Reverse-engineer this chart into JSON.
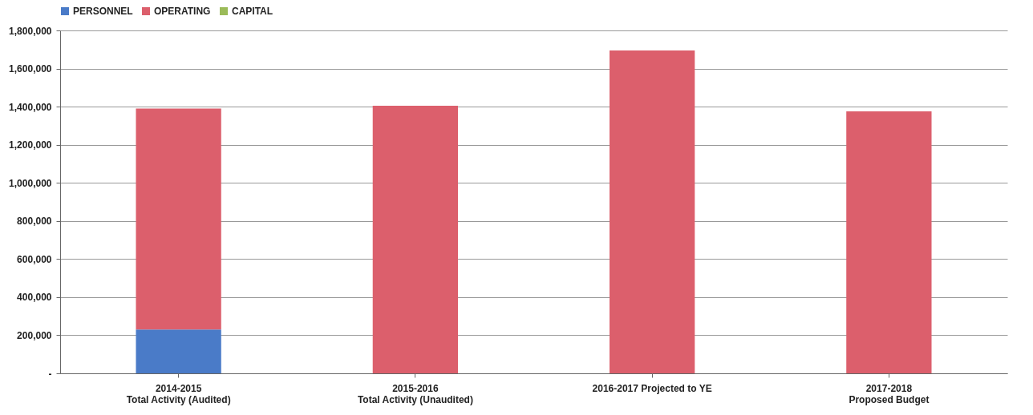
{
  "chart_data": {
    "type": "bar",
    "stacked": true,
    "categories": [
      "2014-2015\nTotal Activity (Audited)",
      "2015-2016\nTotal Activity (Unaudited)",
      "2016-2017 Projected to YE",
      "2017-2018\nProposed Budget"
    ],
    "series": [
      {
        "name": "PERSONNEL",
        "color": "#4a7bc8",
        "values": [
          230000,
          null,
          null,
          null
        ]
      },
      {
        "name": "OPERATING",
        "color": "#dc5f6c",
        "values": [
          1160000,
          1405000,
          1695000,
          1375000
        ]
      },
      {
        "name": "CAPITAL",
        "color": "#9bbb59",
        "values": [
          null,
          null,
          null,
          null
        ]
      }
    ],
    "ylim": [
      0,
      1800000
    ],
    "yticks": [
      {
        "value": 0,
        "label": "-"
      },
      {
        "value": 200000,
        "label": "200,000"
      },
      {
        "value": 400000,
        "label": "400,000"
      },
      {
        "value": 600000,
        "label": "600,000"
      },
      {
        "value": 800000,
        "label": "800,000"
      },
      {
        "value": 1000000,
        "label": "1,000,000"
      },
      {
        "value": 1200000,
        "label": "1,200,000"
      },
      {
        "value": 1400000,
        "label": "1,400,000"
      },
      {
        "value": 1600000,
        "label": "1,600,000"
      },
      {
        "value": 1800000,
        "label": "1,800,000"
      }
    ],
    "grid": "y",
    "legend": "top"
  }
}
